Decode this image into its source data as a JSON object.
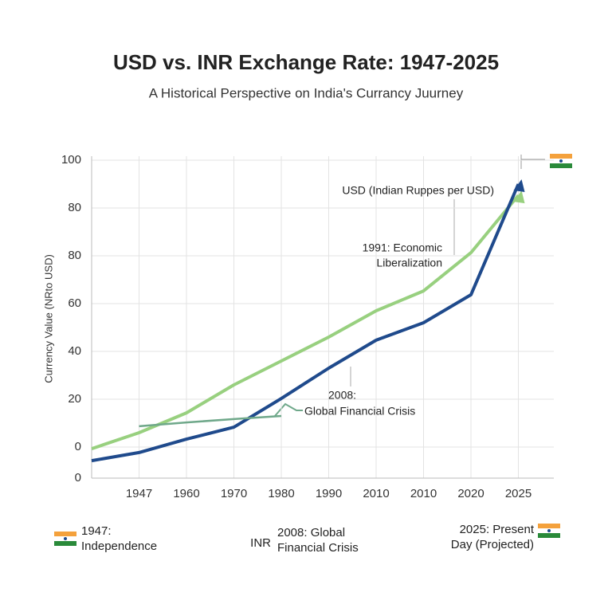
{
  "chart_data": {
    "type": "line",
    "title": "USD vs. INR Exchange Rate: 1947-2025",
    "subtitle": "A Historical Perspective on India's Currancy Juurney",
    "y_label": "Currency Value (NRto USD)",
    "categories": [
      null,
      "1947",
      "1960",
      "1970",
      "1980",
      "1990",
      "2010",
      "2010",
      "2020",
      "2025"
    ],
    "series": [
      {
        "name": "USD (Indian Ruppes per USD)",
        "color": "#98d07f",
        "values": [
          -20.7,
          -14,
          -5.7,
          6,
          16,
          26,
          37,
          45.3,
          61.3,
          85.3
        ]
      },
      {
        "name": "INR",
        "color": "#1f4a8c",
        "values": [
          -25.7,
          -22.3,
          -16.7,
          -11.7,
          0.3,
          13,
          24.7,
          32,
          43.7,
          90
        ]
      },
      {
        "color": "#6fa88a",
        "values": [
          null,
          -11.3,
          -9.7,
          -8.3,
          -7,
          null,
          null,
          null,
          null,
          null
        ]
      }
    ],
    "ylim": [
      -33,
      100
    ],
    "yticks": [
      100,
      80,
      {
        "value": 60,
        "label": "80"
      },
      {
        "value": 40,
        "label": "60"
      },
      {
        "value": 20,
        "label": "40"
      },
      {
        "value": 0,
        "label": "20"
      },
      {
        "value": -20,
        "label": "0"
      },
      {
        "value": -33,
        "label": "0"
      }
    ],
    "grid": true,
    "annotations": [
      {
        "lines": [
          "1991: Economic",
          "Liberalization"
        ]
      },
      {
        "lines": [
          "2008:",
          "Global Financial Crisis"
        ]
      },
      {
        "lines": [
          "1947:",
          "Independence"
        ]
      },
      {
        "lines": [
          "2008: Global",
          "Financial Crisis"
        ]
      },
      {
        "lines": [
          "2025: Present",
          "Day (Projected)"
        ]
      }
    ]
  }
}
